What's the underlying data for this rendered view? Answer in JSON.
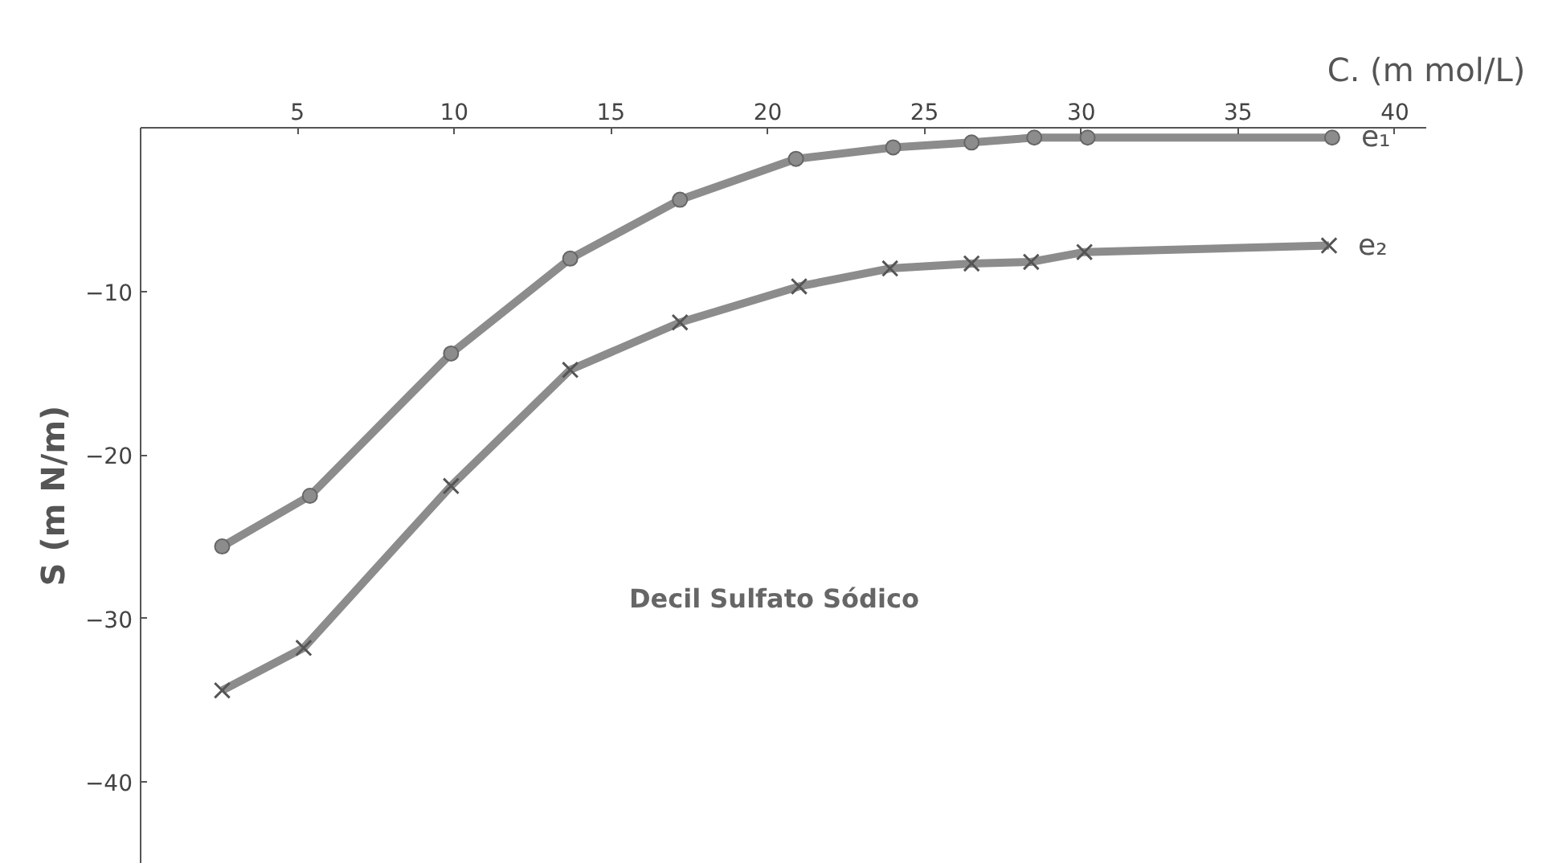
{
  "chart_data": {
    "type": "line",
    "xlabel": "C. (m mol/L)",
    "ylabel": "S (m N/m)",
    "xlim": [
      0,
      41
    ],
    "ylim": [
      -45,
      0
    ],
    "xticks": [
      5,
      10,
      15,
      20,
      25,
      30,
      35,
      40
    ],
    "yticks": [
      -10,
      -20,
      -30,
      -40
    ],
    "grid": false,
    "line_style": "solid",
    "annotations": [
      "Decil  Sulfato Sódico"
    ],
    "series": [
      {
        "name": "e₁",
        "color": "#8c8c8c",
        "marker": "circle",
        "x": [
          2.6,
          5.4,
          9.9,
          13.7,
          17.2,
          20.9,
          24.0,
          26.5,
          28.5,
          30.2,
          38.0
        ],
        "values": [
          -25.6,
          -22.5,
          -13.8,
          -8.0,
          -4.4,
          -1.9,
          -1.2,
          -0.9,
          -0.6,
          -0.6,
          -0.6
        ]
      },
      {
        "name": "e₂",
        "color": "#8c8c8c",
        "marker": "cross",
        "x": [
          2.6,
          5.2,
          9.9,
          13.7,
          17.2,
          21.0,
          23.9,
          26.5,
          28.4,
          30.1,
          37.9
        ],
        "values": [
          -34.4,
          -31.8,
          -21.9,
          -14.8,
          -11.9,
          -9.7,
          -8.6,
          -8.3,
          -8.2,
          -7.6,
          -7.2
        ]
      }
    ]
  }
}
